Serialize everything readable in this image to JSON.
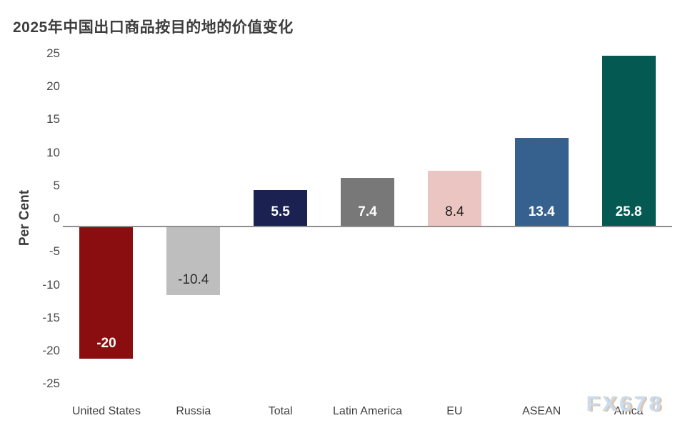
{
  "title": "2025年中国出口商品按目的地的价值变化",
  "watermark": "FX678",
  "chart_data": {
    "type": "bar",
    "title": "2025年中国出口商品按目的地的价值变化",
    "categories": [
      "United States",
      "Russia",
      "Total",
      "Latin America",
      "EU",
      "ASEAN",
      "Africa"
    ],
    "values": [
      -20,
      -10.4,
      5.5,
      7.4,
      8.4,
      13.4,
      25.8
    ],
    "value_labels": [
      "-20",
      "-10.4",
      "5.5",
      "7.4",
      "8.4",
      "13.4",
      "25.8"
    ],
    "bar_colors": [
      "#8a0e10",
      "#bebebe",
      "#1b2150",
      "#787878",
      "#ebc5c1",
      "#36618f",
      "#045a52"
    ],
    "value_label_colors": [
      "#ffffff",
      "#2b2b2b",
      "#ffffff",
      "#ffffff",
      "#1a1a1a",
      "#ffffff",
      "#ffffff"
    ],
    "xlabel": "",
    "ylabel": "Per Cent",
    "ylim": [
      -25,
      25
    ],
    "yticks": [
      25,
      20,
      15,
      10,
      5,
      0,
      -5,
      -10,
      -15,
      -20,
      -25
    ],
    "grid": false,
    "legend": null,
    "zero_line_color": "#8f8f8f",
    "axis_text_color": "#4a4a4a",
    "watermark_color": "#c9dcf0",
    "watermark_shadow_color": "#dcc6b0"
  }
}
